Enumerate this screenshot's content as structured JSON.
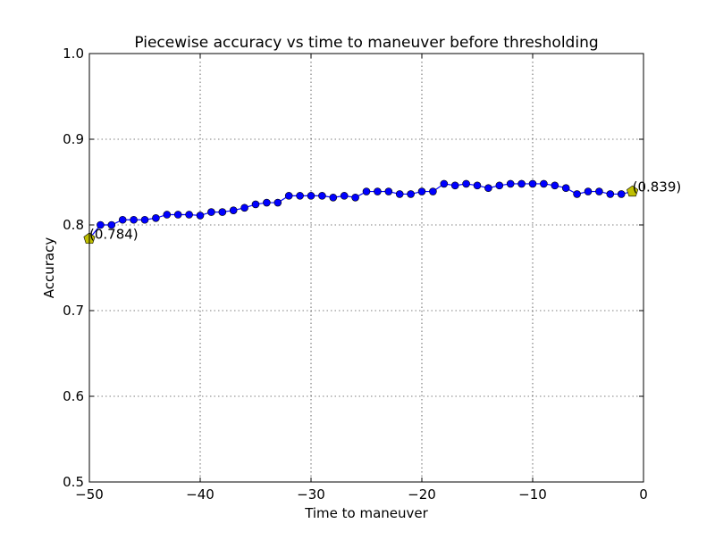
{
  "chart_data": {
    "type": "line",
    "title": "Piecewise accuracy vs time to maneuver before thresholding",
    "xlabel": "Time to maneuver",
    "ylabel": "Accuracy",
    "xlim": [
      -50,
      0
    ],
    "ylim": [
      0.5,
      1.0
    ],
    "xticks": [
      -50,
      -40,
      -30,
      -20,
      -10,
      0
    ],
    "xtick_labels": [
      "−50",
      "−40",
      "−30",
      "−20",
      "−10",
      "0"
    ],
    "yticks": [
      0.5,
      0.6,
      0.7,
      0.8,
      0.9,
      1.0
    ],
    "ytick_labels": [
      "0.5",
      "0.6",
      "0.7",
      "0.8",
      "0.9",
      "1.0"
    ],
    "grid": true,
    "series": [
      {
        "color": "#0000ff",
        "marker": "circle",
        "x": [
          -50,
          -49,
          -48,
          -47,
          -46,
          -45,
          -44,
          -43,
          -42,
          -41,
          -40,
          -39,
          -38,
          -37,
          -36,
          -35,
          -34,
          -33,
          -32,
          -31,
          -30,
          -29,
          -28,
          -27,
          -26,
          -25,
          -24,
          -23,
          -22,
          -21,
          -20,
          -19,
          -18,
          -17,
          -16,
          -15,
          -14,
          -13,
          -12,
          -11,
          -10,
          -9,
          -8,
          -7,
          -6,
          -5,
          -4,
          -3,
          -2,
          -1
        ],
        "y": [
          0.784,
          0.8,
          0.8,
          0.806,
          0.806,
          0.806,
          0.808,
          0.812,
          0.812,
          0.812,
          0.811,
          0.815,
          0.815,
          0.817,
          0.82,
          0.824,
          0.826,
          0.826,
          0.834,
          0.834,
          0.834,
          0.834,
          0.832,
          0.834,
          0.832,
          0.839,
          0.839,
          0.839,
          0.836,
          0.836,
          0.839,
          0.839,
          0.848,
          0.846,
          0.848,
          0.846,
          0.843,
          0.846,
          0.848,
          0.848,
          0.848,
          0.848,
          0.846,
          0.843,
          0.836,
          0.839,
          0.839,
          0.836,
          0.836,
          0.839
        ]
      }
    ],
    "highlights": [
      {
        "x": -50,
        "y": 0.784,
        "label": "(0.784)",
        "color": "#bfbf00",
        "marker": "pentagon"
      },
      {
        "x": -1,
        "y": 0.839,
        "label": "(0.839)",
        "color": "#bfbf00",
        "marker": "pentagon"
      }
    ]
  }
}
